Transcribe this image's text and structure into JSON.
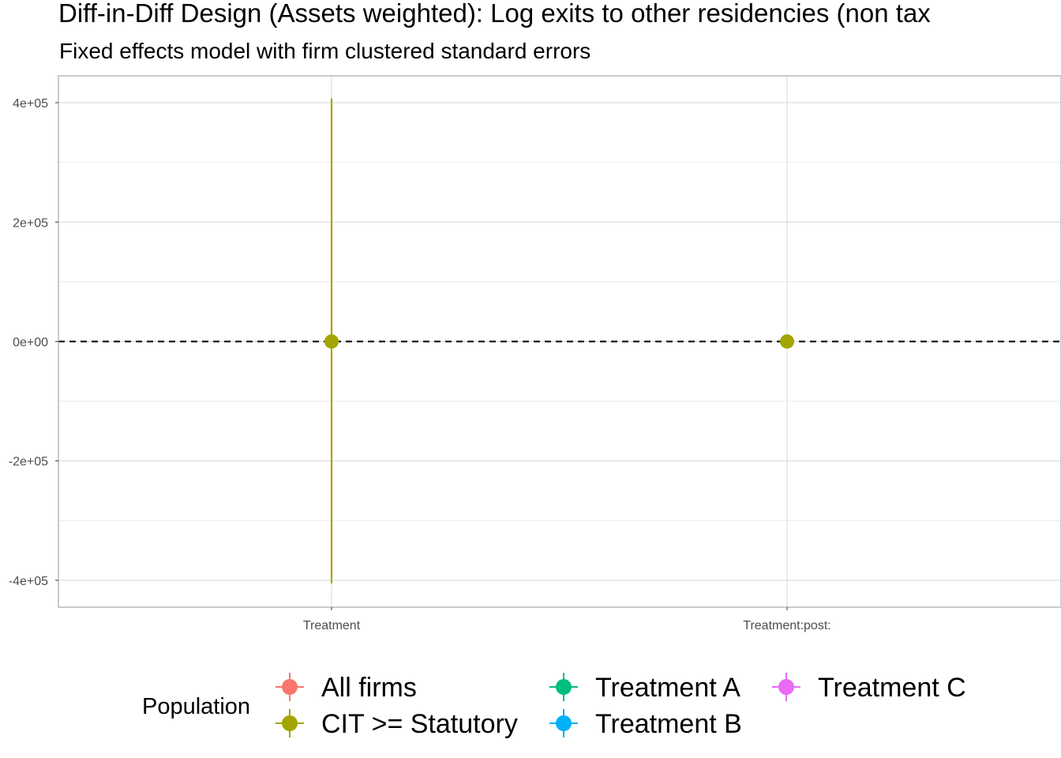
{
  "chart_data": {
    "type": "scatter",
    "title": "Diff-in-Diff Design (Assets weighted): Log exits to other residencies (non tax",
    "subtitle": "Fixed effects model with firm clustered standard errors",
    "xlabel": "",
    "ylabel": "",
    "categories": [
      "Treatment",
      "Treatment:post:"
    ],
    "y_ticks": [
      -400000,
      -200000,
      0,
      200000,
      400000
    ],
    "y_tick_labels": [
      "-4e+05",
      "-2e+05",
      "0e+00",
      "2e+05",
      "4e+05"
    ],
    "ylim": [
      -445000,
      445000
    ],
    "grid": true,
    "reference_line": {
      "y": 0,
      "style": "dashed",
      "color": "#000000"
    },
    "legend": {
      "title": "Population",
      "placement": "bottom",
      "entries": [
        {
          "label": "All firms",
          "color": "#F8766D"
        },
        {
          "label": "CIT >= Statutory",
          "color": "#A3A500"
        },
        {
          "label": "Treatment A",
          "color": "#00BF7D"
        },
        {
          "label": "Treatment B",
          "color": "#00B0F6"
        },
        {
          "label": "Treatment C",
          "color": "#E76BF3"
        }
      ]
    },
    "series": [
      {
        "name": "CIT >= Statutory",
        "color": "#A3A500",
        "points": [
          {
            "x": "Treatment",
            "estimate": 0,
            "ci_low": -405000,
            "ci_high": 407000
          },
          {
            "x": "Treatment:post:",
            "estimate": 0,
            "ci_low": 0,
            "ci_high": 0
          }
        ]
      }
    ]
  }
}
